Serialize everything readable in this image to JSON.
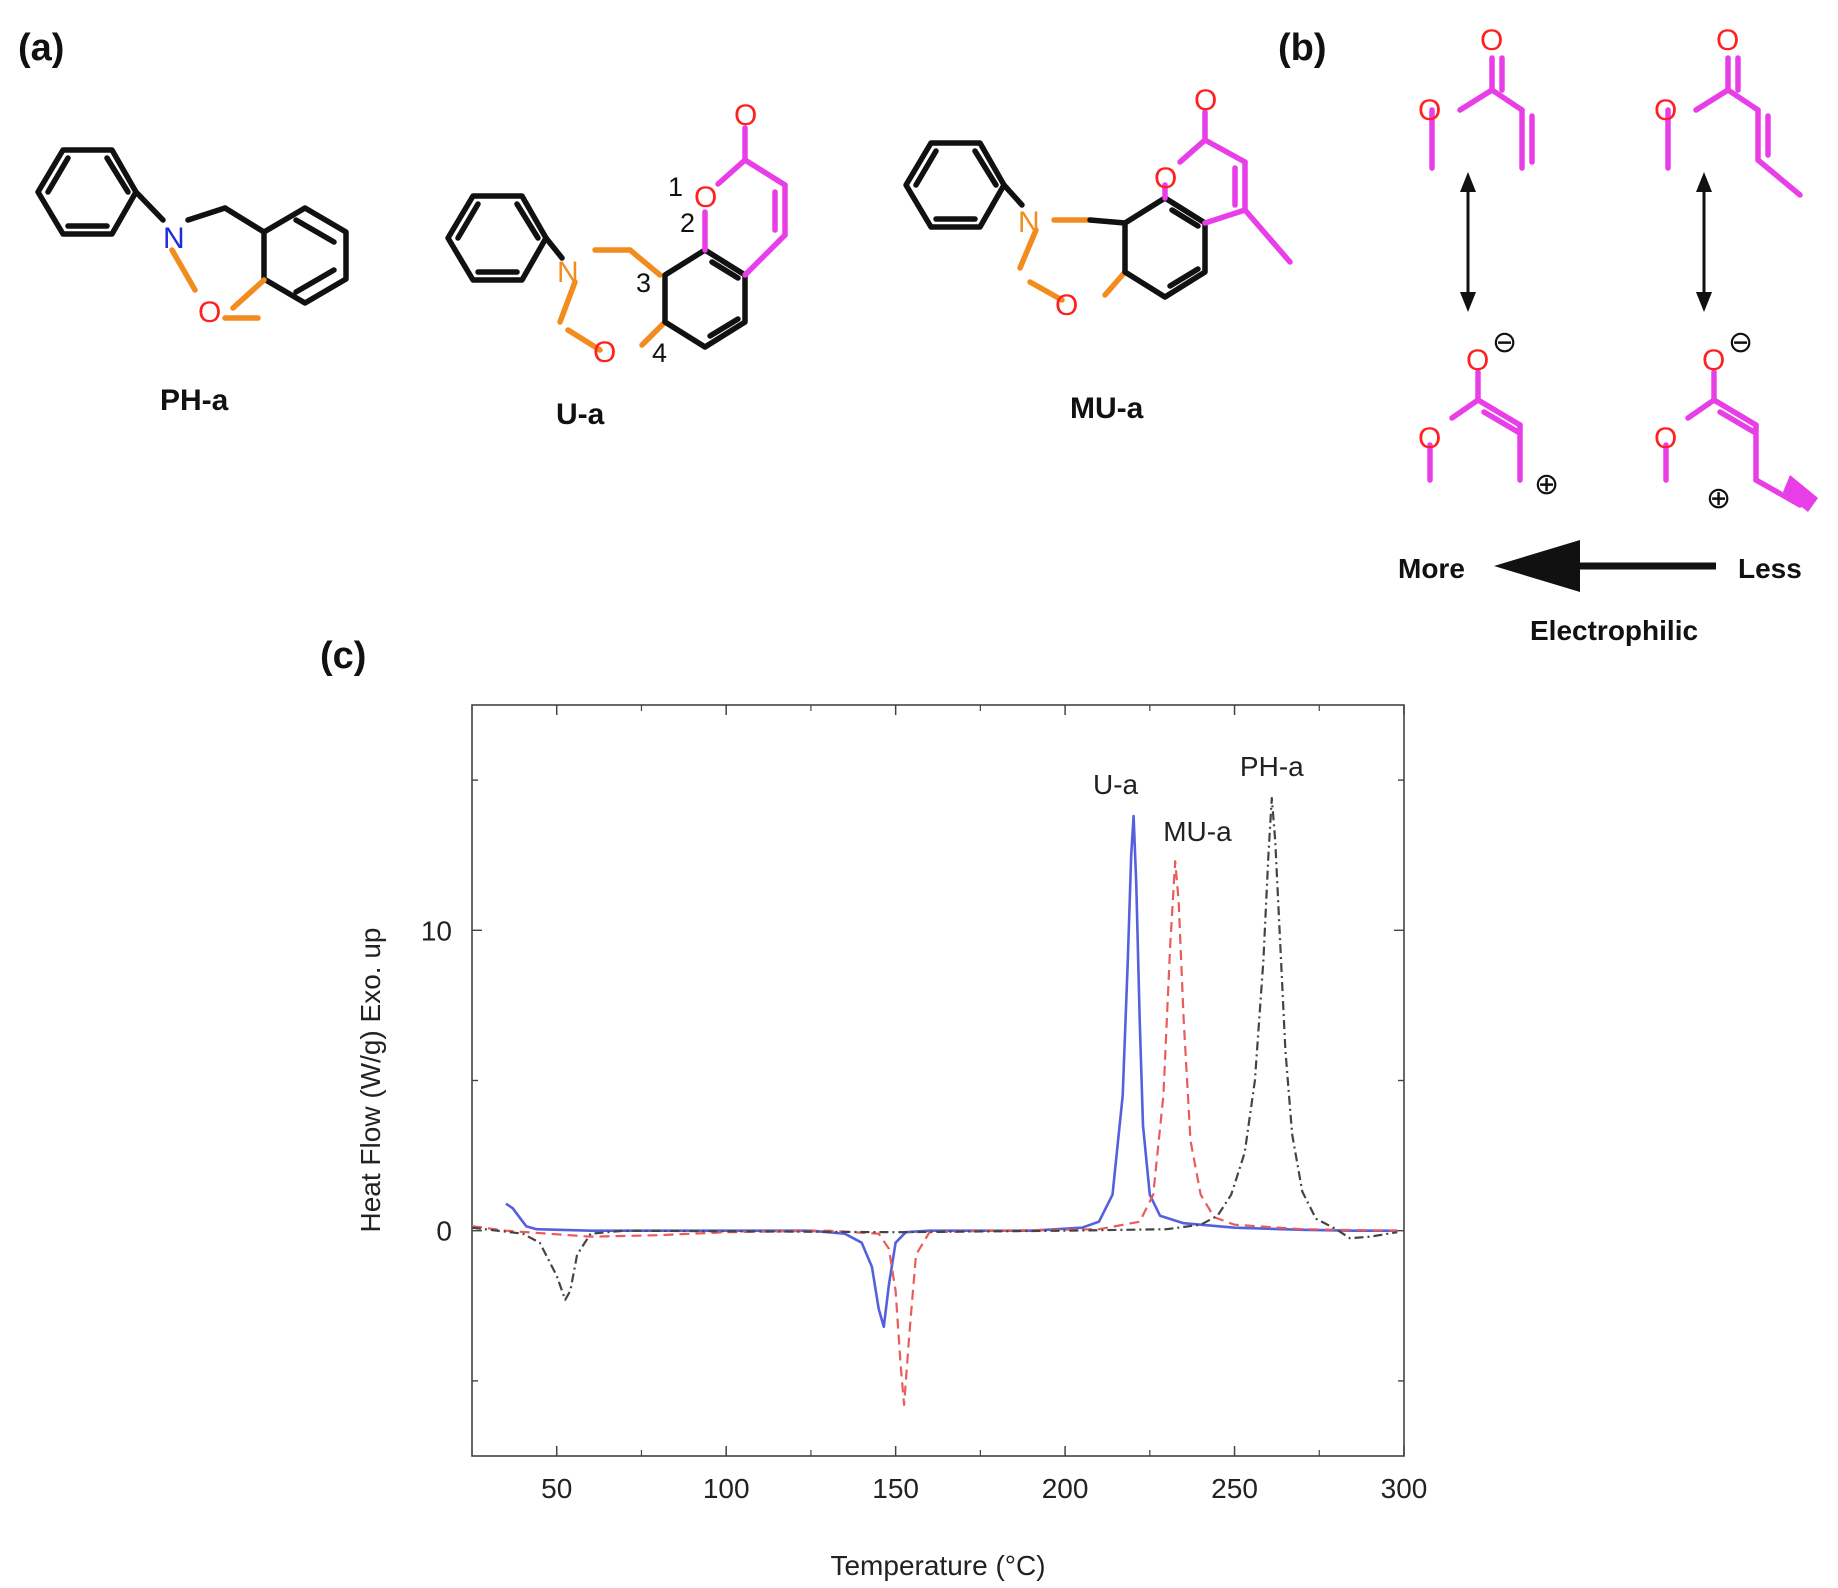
{
  "panels": {
    "a": "(a)",
    "b": "(b)",
    "c": "(c)"
  },
  "structures": {
    "compounds": [
      "PH-a",
      "U-a",
      "MU-a"
    ],
    "atoms": {
      "nitrogen": "N",
      "oxygen": "O"
    },
    "position_numbers": [
      "1",
      "2",
      "3",
      "4"
    ],
    "charges": {
      "minus": "⊖",
      "plus": "⊕"
    }
  },
  "panel_b": {
    "more": "More",
    "less": "Less",
    "caption": "Electrophilic"
  },
  "colors": {
    "structure_black": "#111111",
    "oxazine_orange": "#f28c1e",
    "nitrogen_blue": "#1d2bdb",
    "oxygen_red": "#ff2020",
    "coumarin_magenta": "#e83ee8",
    "series_ua": "#5560dd",
    "series_mua": "#e85c5c",
    "series_pha": "#444444"
  },
  "chart_data": {
    "type": "line",
    "xlabel": "Temperature (°C)",
    "ylabel": "Heat Flow (W/g) Exo. up",
    "xlim": [
      25,
      300
    ],
    "ylim": [
      -7.5,
      17.5
    ],
    "x_ticks": [
      "50",
      "100",
      "150",
      "200",
      "250",
      "300"
    ],
    "y_ticks": [
      "0",
      "10"
    ],
    "grid": false,
    "legend": "none (series labeled at peaks)",
    "series": [
      {
        "name": "U-a",
        "style": "solid",
        "color": "#5560dd",
        "points": [
          [
            35,
            0.9
          ],
          [
            37,
            0.75
          ],
          [
            39,
            0.45
          ],
          [
            41,
            0.15
          ],
          [
            44,
            0.05
          ],
          [
            60,
            0.0
          ],
          [
            100,
            0.0
          ],
          [
            125,
            0.0
          ],
          [
            135,
            -0.1
          ],
          [
            140,
            -0.4
          ],
          [
            143,
            -1.2
          ],
          [
            145,
            -2.6
          ],
          [
            146.5,
            -3.2
          ],
          [
            148,
            -1.8
          ],
          [
            150,
            -0.4
          ],
          [
            153,
            -0.05
          ],
          [
            160,
            0.0
          ],
          [
            190,
            0.0
          ],
          [
            205,
            0.1
          ],
          [
            210,
            0.3
          ],
          [
            214,
            1.2
          ],
          [
            217,
            4.5
          ],
          [
            218.5,
            9.0
          ],
          [
            219.5,
            12.5
          ],
          [
            220.2,
            13.8
          ],
          [
            221,
            11.5
          ],
          [
            222,
            7.0
          ],
          [
            223,
            3.5
          ],
          [
            225,
            1.2
          ],
          [
            228,
            0.5
          ],
          [
            235,
            0.25
          ],
          [
            250,
            0.1
          ],
          [
            270,
            0.03
          ],
          [
            285,
            0.0
          ],
          [
            298,
            0.0
          ]
        ]
      },
      {
        "name": "MU-a",
        "style": "dashed",
        "color": "#e85c5c",
        "points": [
          [
            25,
            0.15
          ],
          [
            35,
            0.0
          ],
          [
            60,
            -0.2
          ],
          [
            80,
            -0.15
          ],
          [
            100,
            -0.05
          ],
          [
            130,
            0.0
          ],
          [
            145,
            -0.1
          ],
          [
            148,
            -0.6
          ],
          [
            150,
            -2.0
          ],
          [
            151.5,
            -4.5
          ],
          [
            152.5,
            -5.8
          ],
          [
            154,
            -3.5
          ],
          [
            156,
            -0.8
          ],
          [
            160,
            -0.05
          ],
          [
            180,
            0.0
          ],
          [
            210,
            0.05
          ],
          [
            222,
            0.3
          ],
          [
            226,
            1.2
          ],
          [
            229,
            4.5
          ],
          [
            231,
            9.5
          ],
          [
            232.5,
            12.3
          ],
          [
            233.5,
            11.0
          ],
          [
            235,
            7.0
          ],
          [
            237,
            3.0
          ],
          [
            240,
            1.2
          ],
          [
            244,
            0.45
          ],
          [
            250,
            0.2
          ],
          [
            270,
            0.05
          ],
          [
            298,
            0.0
          ]
        ]
      },
      {
        "name": "PH-a",
        "style": "dash-dot",
        "color": "#444444",
        "points": [
          [
            25,
            0.1
          ],
          [
            40,
            -0.1
          ],
          [
            45,
            -0.4
          ],
          [
            50,
            -1.5
          ],
          [
            52.5,
            -2.3
          ],
          [
            54,
            -2.0
          ],
          [
            56,
            -0.8
          ],
          [
            60,
            -0.1
          ],
          [
            70,
            0.0
          ],
          [
            150,
            -0.05
          ],
          [
            200,
            0.0
          ],
          [
            230,
            0.05
          ],
          [
            240,
            0.2
          ],
          [
            245,
            0.5
          ],
          [
            249,
            1.2
          ],
          [
            253,
            2.6
          ],
          [
            256,
            5.0
          ],
          [
            258.5,
            9.0
          ],
          [
            260,
            12.5
          ],
          [
            261,
            14.4
          ],
          [
            262,
            13.0
          ],
          [
            263.5,
            9.5
          ],
          [
            265,
            6.0
          ],
          [
            267,
            3.2
          ],
          [
            270,
            1.3
          ],
          [
            274,
            0.4
          ],
          [
            280,
            0.05
          ],
          [
            284,
            -0.25
          ],
          [
            290,
            -0.2
          ],
          [
            298,
            -0.05
          ]
        ]
      }
    ]
  }
}
